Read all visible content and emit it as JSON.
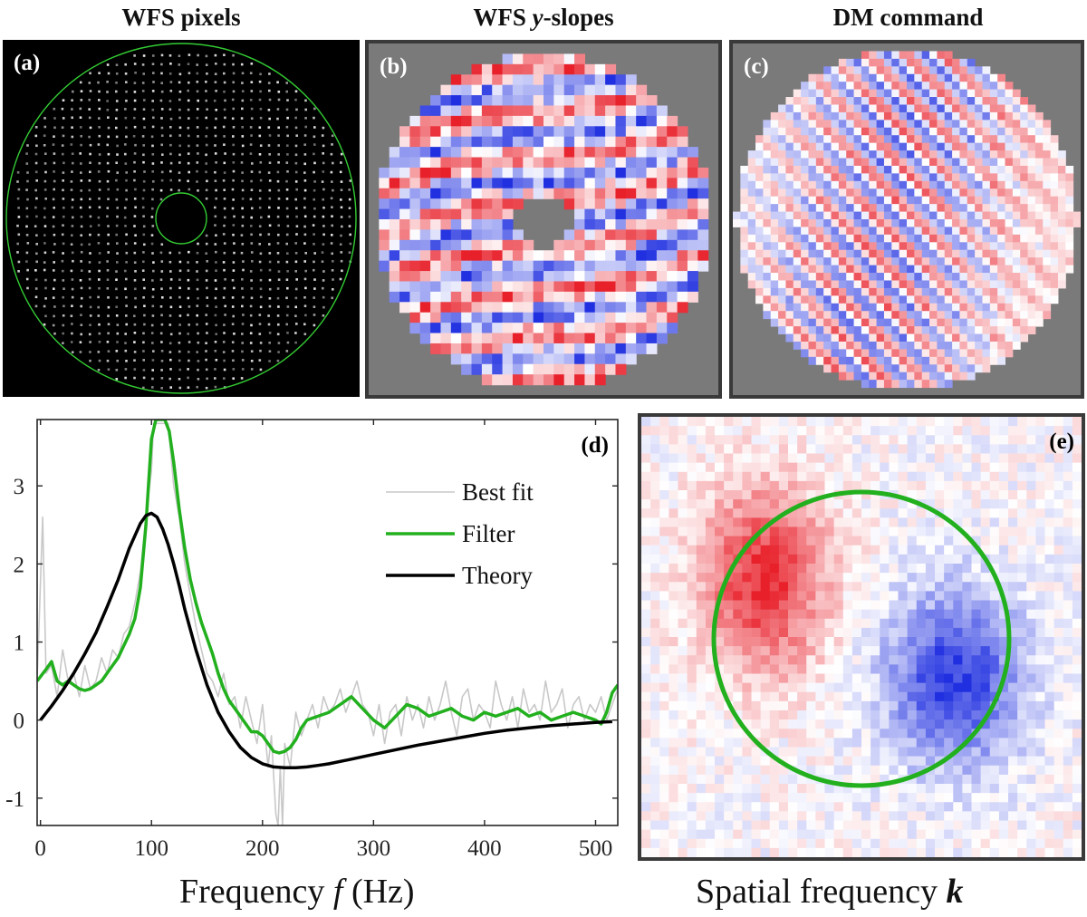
{
  "panels": {
    "a": {
      "title": "WFS pixels",
      "label": "(a)"
    },
    "b": {
      "title_prefix": "WFS ",
      "title_var": "y",
      "title_suffix": "-slopes",
      "label": "(b)"
    },
    "c": {
      "title": "DM command",
      "label": "(c)"
    },
    "d": {
      "label": "(d)"
    },
    "e": {
      "label": "(e)",
      "xlabel_text": "Spatial frequency ",
      "xlabel_var": "k"
    }
  },
  "colors": {
    "positive": "#e8202a",
    "negative": "#2030e0",
    "neutral": "#ffffff",
    "background_grey": "#7a7a7a",
    "filter_green": "#22b01e",
    "circle_green": "#22b01e",
    "best_fit_grey": "#c8c8c8",
    "theory_black": "#000000",
    "wfs_background": "#000000",
    "wfs_spot": "#e6e6e6",
    "aperture_green": "#33cc33"
  },
  "chart_data": {
    "type": "line",
    "xlabel_text": "Frequency ",
    "xlabel_var": "f",
    "xlabel_unit": " (Hz)",
    "xlim": [
      -3,
      520
    ],
    "ylim": [
      -1.35,
      3.85
    ],
    "xticks": [
      0,
      100,
      200,
      300,
      400,
      500
    ],
    "yticks": [
      3,
      2,
      1,
      0,
      -1
    ],
    "ytick_labels": [
      "3",
      "2",
      "1",
      "0",
      "-1"
    ],
    "legend_position": "top-right",
    "series": [
      {
        "name": "Best fit",
        "color": "#c8c8c8",
        "width": 1.6,
        "x": [
          -3,
          2,
          5,
          10,
          15,
          20,
          25,
          30,
          35,
          40,
          45,
          50,
          55,
          60,
          65,
          70,
          75,
          80,
          85,
          90,
          95,
          100,
          102,
          106,
          110,
          115,
          120,
          125,
          130,
          135,
          140,
          145,
          150,
          155,
          160,
          165,
          170,
          175,
          180,
          185,
          190,
          195,
          200,
          205,
          208,
          212,
          214,
          216,
          218,
          220,
          225,
          230,
          235,
          240,
          245,
          250,
          255,
          260,
          265,
          270,
          275,
          280,
          285,
          290,
          295,
          300,
          305,
          310,
          315,
          320,
          325,
          330,
          335,
          340,
          345,
          350,
          355,
          360,
          365,
          370,
          375,
          380,
          385,
          390,
          395,
          400,
          405,
          410,
          415,
          420,
          425,
          430,
          435,
          440,
          445,
          450,
          455,
          460,
          465,
          470,
          475,
          480,
          485,
          490,
          495,
          500,
          505,
          510,
          515,
          520
        ],
        "y": [
          0.5,
          2.6,
          0.6,
          0.7,
          0.3,
          0.9,
          0.5,
          0.6,
          0.3,
          0.7,
          0.4,
          0.5,
          0.8,
          0.6,
          0.9,
          0.8,
          1.1,
          1.2,
          1.5,
          1.9,
          2.6,
          3.2,
          3.8,
          3.8,
          3.8,
          3.8,
          3.0,
          2.6,
          2.0,
          1.6,
          1.2,
          0.9,
          0.6,
          0.5,
          0.3,
          0.6,
          0.2,
          0.3,
          -0.1,
          0.3,
          0.0,
          -0.3,
          0.2,
          -0.6,
          -0.2,
          -1.2,
          -1.35,
          -0.6,
          -1.35,
          -0.3,
          -0.6,
          0.1,
          -0.2,
          0.0,
          0.2,
          -0.1,
          0.3,
          0.1,
          0.2,
          0.4,
          0.1,
          0.3,
          0.5,
          0.2,
          0.1,
          -0.2,
          0.2,
          -0.3,
          0.1,
          0.2,
          -0.2,
          0.3,
          0.0,
          0.2,
          -0.1,
          0.3,
          0.0,
          0.2,
          0.5,
          0.1,
          -0.2,
          0.3,
          0.4,
          0.0,
          0.2,
          0.1,
          -0.1,
          0.5,
          0.2,
          0.0,
          0.3,
          -0.1,
          0.4,
          0.1,
          0.2,
          0.0,
          0.5,
          0.1,
          0.2,
          0.4,
          -0.1,
          0.2,
          0.3,
          0.0,
          0.2,
          0.1,
          0.3,
          0.0,
          0.2,
          0.4
        ]
      },
      {
        "name": "Filter",
        "color": "#22b01e",
        "width": 3.5,
        "x": [
          -3,
          5,
          10,
          15,
          20,
          25,
          30,
          35,
          40,
          45,
          50,
          55,
          60,
          65,
          70,
          75,
          80,
          85,
          90,
          95,
          100,
          104,
          108,
          112,
          116,
          120,
          125,
          130,
          135,
          140,
          145,
          150,
          155,
          160,
          165,
          170,
          175,
          180,
          185,
          190,
          195,
          200,
          205,
          210,
          215,
          220,
          225,
          230,
          235,
          240,
          250,
          260,
          270,
          280,
          290,
          300,
          310,
          320,
          330,
          340,
          350,
          360,
          370,
          380,
          390,
          400,
          410,
          420,
          430,
          440,
          450,
          460,
          470,
          480,
          490,
          500,
          505,
          510,
          515,
          520
        ],
        "y": [
          0.5,
          0.65,
          0.75,
          0.5,
          0.45,
          0.5,
          0.45,
          0.4,
          0.38,
          0.4,
          0.45,
          0.5,
          0.6,
          0.7,
          0.8,
          0.95,
          1.1,
          1.3,
          1.7,
          2.5,
          3.6,
          3.85,
          3.85,
          3.85,
          3.7,
          3.3,
          2.7,
          2.2,
          1.8,
          1.5,
          1.25,
          1.05,
          0.85,
          0.6,
          0.4,
          0.25,
          0.15,
          0.05,
          -0.05,
          -0.15,
          -0.15,
          -0.2,
          -0.3,
          -0.4,
          -0.42,
          -0.4,
          -0.35,
          -0.25,
          -0.1,
          0.0,
          0.05,
          0.1,
          0.2,
          0.3,
          0.15,
          0.0,
          -0.1,
          0.05,
          0.2,
          0.15,
          0.05,
          0.1,
          0.15,
          0.05,
          0.0,
          0.1,
          0.05,
          0.1,
          0.15,
          0.05,
          0.1,
          0.0,
          0.05,
          0.1,
          0.05,
          0.0,
          -0.05,
          0.1,
          0.35,
          0.45
        ]
      },
      {
        "name": "Theory",
        "color": "#000000",
        "width": 3.5,
        "x": [
          0,
          10,
          20,
          30,
          40,
          50,
          60,
          70,
          80,
          90,
          95,
          100,
          105,
          110,
          115,
          120,
          125,
          130,
          140,
          150,
          160,
          170,
          180,
          190,
          200,
          210,
          220,
          230,
          240,
          250,
          260,
          280,
          300,
          320,
          340,
          360,
          380,
          400,
          420,
          440,
          460,
          480,
          500,
          515
        ],
        "y": [
          0.0,
          0.18,
          0.38,
          0.6,
          0.85,
          1.12,
          1.45,
          1.8,
          2.2,
          2.52,
          2.62,
          2.65,
          2.6,
          2.45,
          2.25,
          2.0,
          1.72,
          1.42,
          0.9,
          0.45,
          0.1,
          -0.15,
          -0.35,
          -0.48,
          -0.56,
          -0.6,
          -0.61,
          -0.61,
          -0.6,
          -0.58,
          -0.56,
          -0.5,
          -0.44,
          -0.38,
          -0.32,
          -0.27,
          -0.22,
          -0.17,
          -0.13,
          -0.1,
          -0.07,
          -0.05,
          -0.03,
          -0.02
        ]
      }
    ]
  }
}
